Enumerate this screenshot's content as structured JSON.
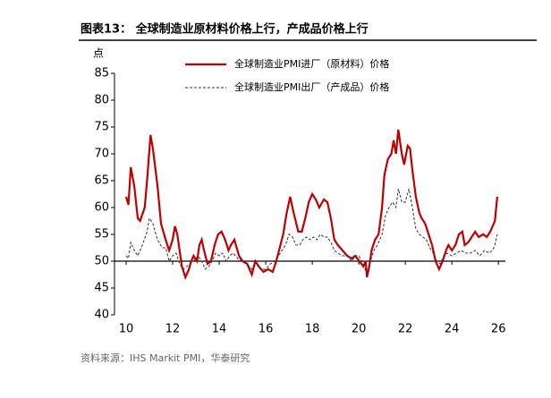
{
  "chart_data": {
    "type": "line",
    "title": "图表13：  全球制造业原材料价格上行，产成品价格上行",
    "y_label": "点",
    "source": "资料来源：IHS Markit PMI，华泰研究",
    "xlim": [
      9.5,
      26.3
    ],
    "xticks": [
      10,
      12,
      14,
      16,
      18,
      20,
      22,
      24,
      26
    ],
    "ylim": [
      40,
      85
    ],
    "yticks": [
      40,
      45,
      50,
      55,
      60,
      65,
      70,
      75,
      80,
      85
    ],
    "baseline": 50,
    "series": [
      {
        "name": "全球制造业PMI进厂（原材料）价格",
        "color": "#c00000",
        "dash": false,
        "x": [
          10.0,
          10.1,
          10.2,
          10.35,
          10.5,
          10.6,
          10.8,
          10.9,
          11.05,
          11.15,
          11.35,
          11.5,
          11.7,
          11.85,
          12.0,
          12.1,
          12.2,
          12.4,
          12.55,
          12.7,
          12.8,
          12.9,
          13.05,
          13.15,
          13.25,
          13.35,
          13.5,
          13.65,
          13.8,
          13.95,
          14.1,
          14.25,
          14.4,
          14.5,
          14.65,
          14.85,
          15.0,
          15.2,
          15.4,
          15.55,
          15.7,
          15.9,
          16.1,
          16.3,
          16.45,
          16.6,
          16.75,
          16.9,
          17.05,
          17.2,
          17.4,
          17.55,
          17.7,
          17.85,
          18.0,
          18.15,
          18.3,
          18.5,
          18.65,
          18.8,
          18.95,
          19.1,
          19.3,
          19.5,
          19.7,
          19.85,
          20.2,
          20.3,
          20.35,
          20.45,
          20.55,
          20.7,
          20.85,
          21.0,
          21.1,
          21.25,
          21.4,
          21.5,
          21.6,
          21.7,
          21.85,
          21.95,
          22.1,
          22.2,
          22.3,
          22.45,
          22.6,
          22.7,
          22.85,
          23.0,
          23.15,
          23.3,
          23.45,
          23.6,
          23.75,
          23.85,
          24.0,
          24.15,
          24.3,
          24.45,
          24.55,
          24.7,
          24.85,
          25.0,
          25.15,
          25.35,
          25.5,
          25.65,
          25.75,
          25.85,
          25.95
        ],
        "values": [
          62,
          60.5,
          67.5,
          64,
          58,
          57.5,
          60,
          65,
          73.5,
          71,
          64,
          57,
          54,
          52,
          54,
          56.5,
          55,
          49,
          47,
          48.5,
          50,
          51,
          50,
          53,
          54,
          52,
          49.5,
          50,
          53,
          55,
          55.5,
          54,
          52,
          53,
          54,
          51,
          50,
          49.5,
          47.5,
          50,
          49,
          48,
          48.5,
          48,
          50,
          52.5,
          55,
          59,
          62,
          59,
          55.5,
          55.5,
          58,
          61,
          62.5,
          61.5,
          60,
          61.5,
          61,
          58,
          54,
          53,
          52,
          51,
          50.5,
          51,
          49,
          50,
          47,
          49,
          52,
          54,
          55,
          60,
          66,
          69,
          70,
          72.5,
          70,
          74.5,
          70,
          68,
          71.5,
          71,
          67,
          62,
          59,
          58,
          57,
          55,
          53,
          50,
          48.5,
          50,
          52,
          53,
          52,
          53,
          55,
          55.5,
          53,
          53.5,
          54.5,
          55.5,
          54.5,
          55,
          54.5,
          55.5,
          56.5,
          57.5,
          62
        ]
      },
      {
        "name": "全球制造业PMI出厂（产成品）价格",
        "color": "#333333",
        "dash": true,
        "x": [
          10.0,
          10.1,
          10.2,
          10.35,
          10.5,
          10.7,
          10.9,
          11.0,
          11.15,
          11.35,
          11.55,
          11.7,
          11.85,
          12.0,
          12.15,
          12.3,
          12.45,
          12.6,
          12.75,
          12.9,
          13.1,
          13.25,
          13.4,
          13.55,
          13.7,
          13.85,
          14.0,
          14.15,
          14.3,
          14.45,
          14.6,
          14.8,
          15.0,
          15.2,
          15.4,
          15.6,
          15.8,
          16.0,
          16.2,
          16.4,
          16.55,
          16.7,
          16.85,
          17.0,
          17.15,
          17.3,
          17.45,
          17.6,
          17.75,
          17.9,
          18.05,
          18.2,
          18.35,
          18.5,
          18.65,
          18.8,
          18.95,
          19.1,
          19.3,
          19.5,
          19.7,
          19.85,
          20.0,
          20.2,
          20.35,
          20.5,
          20.65,
          20.8,
          21.0,
          21.15,
          21.3,
          21.45,
          21.6,
          21.7,
          21.85,
          22.0,
          22.15,
          22.3,
          22.45,
          22.6,
          22.75,
          22.9,
          23.05,
          23.2,
          23.35,
          23.5,
          23.65,
          23.8,
          24.0,
          24.2,
          24.4,
          24.6,
          24.8,
          25.0,
          25.2,
          25.4,
          25.6,
          25.75,
          25.85,
          25.95
        ],
        "values": [
          51,
          50.5,
          53.5,
          52,
          51,
          53,
          55.5,
          58,
          57,
          54,
          52.5,
          52.5,
          50,
          51,
          51.5,
          49.5,
          48.5,
          49,
          49.5,
          50,
          51,
          50,
          48.5,
          49,
          50,
          51.5,
          51,
          51.5,
          50,
          51,
          51.5,
          50.5,
          50,
          49.5,
          48.5,
          49.5,
          48.5,
          48.5,
          49.5,
          50,
          51,
          52,
          53,
          55,
          54.5,
          53,
          53,
          54,
          54.5,
          54,
          54.5,
          54,
          55,
          54.5,
          54.5,
          53.5,
          52,
          51.5,
          51,
          51,
          50,
          51,
          51,
          49.5,
          47.5,
          50,
          52,
          53,
          55,
          58.5,
          60,
          61,
          60,
          63.5,
          61,
          61,
          63.5,
          60,
          56,
          55,
          54.5,
          54,
          52.5,
          51.5,
          50,
          49.5,
          51,
          51.5,
          51,
          51.5,
          52,
          51.5,
          51.5,
          52,
          51,
          52,
          51.5,
          52,
          53,
          55
        ]
      }
    ]
  }
}
